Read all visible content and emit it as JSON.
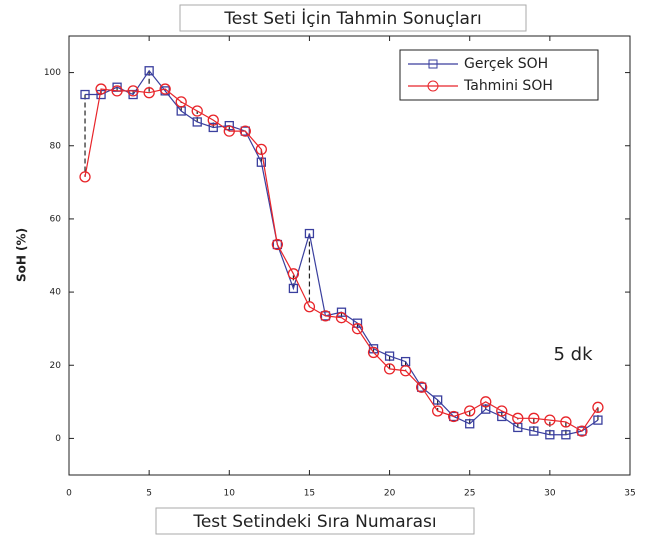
{
  "chart_data": {
    "type": "line",
    "title": "Test Seti İçin Tahmin Sonuçları",
    "x_label": "Test Setindeki Sıra Numarası",
    "y_label": "SoH (%)",
    "annotation": "5 dk",
    "x": [
      1,
      2,
      3,
      4,
      5,
      6,
      7,
      8,
      9,
      10,
      11,
      12,
      13,
      14,
      15,
      16,
      17,
      18,
      19,
      20,
      21,
      22,
      23,
      24,
      25,
      26,
      27,
      28,
      29,
      30,
      31,
      32,
      33
    ],
    "series": [
      {
        "name": "Gerçek SOH",
        "color": "#3a3f9e",
        "marker": "square",
        "values": [
          94,
          94,
          96,
          94,
          100.5,
          95,
          89.5,
          86.5,
          85,
          85.5,
          84,
          75.5,
          53,
          41,
          56,
          33.5,
          34.5,
          31.5,
          24.5,
          22.5,
          21,
          14,
          10.5,
          6,
          4,
          8,
          6,
          3,
          2,
          1,
          1,
          2,
          5
        ]
      },
      {
        "name": "Tahmini SOH",
        "color": "#e8252a",
        "marker": "circle",
        "values": [
          71.5,
          95.5,
          95,
          95,
          94.5,
          95.5,
          92,
          89.5,
          87,
          84,
          84,
          79,
          53,
          45,
          36,
          33.5,
          33,
          30,
          23.5,
          19,
          18.5,
          14,
          7.5,
          6,
          7.5,
          10,
          7.5,
          5.5,
          5.5,
          5,
          4.5,
          2,
          8.5
        ]
      }
    ],
    "xlim": [
      0,
      35
    ],
    "xticks": [
      0,
      5,
      10,
      15,
      20,
      25,
      30,
      35
    ],
    "ylim": [
      -10,
      110
    ],
    "yticks": [
      0,
      20,
      40,
      60,
      80,
      100
    ],
    "legend": "upper right"
  }
}
